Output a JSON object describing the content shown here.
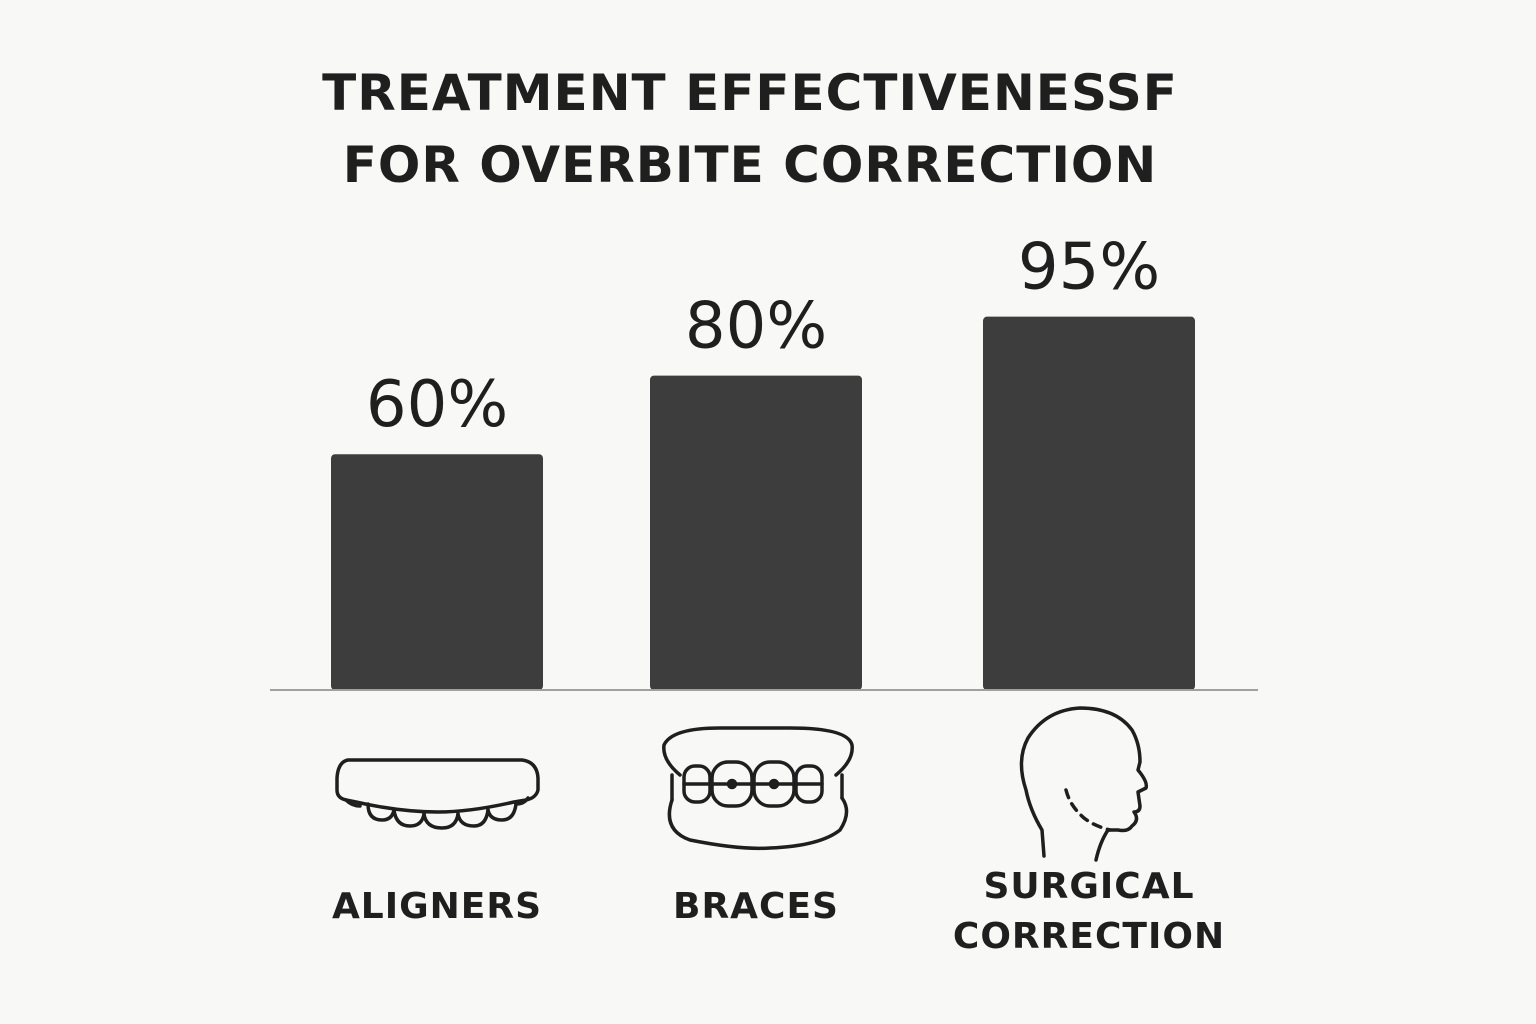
{
  "chart_data": {
    "type": "bar",
    "title_lines": [
      "TREATMENT EFFECTIVENESSF",
      "FOR OVERBITE CORRECTION"
    ],
    "categories": [
      {
        "label_lines": [
          "ALIGNERS"
        ],
        "icon": "aligner-icon"
      },
      {
        "label_lines": [
          "BRACES"
        ],
        "icon": "braces-icon"
      },
      {
        "label_lines": [
          "SURGICAL",
          "CORRECTION"
        ],
        "icon": "head-profile-icon"
      }
    ],
    "values": [
      60,
      80,
      95
    ],
    "value_labels": [
      "60%",
      "80%",
      "95%"
    ],
    "unit": "%",
    "ylim": [
      0,
      100
    ],
    "grid": false,
    "legend": "none",
    "colors": {
      "bar": "#3d3d3d",
      "baseline": "#a0a0a0",
      "background": "#f8f8f6",
      "text": "#1f1f1f"
    }
  }
}
